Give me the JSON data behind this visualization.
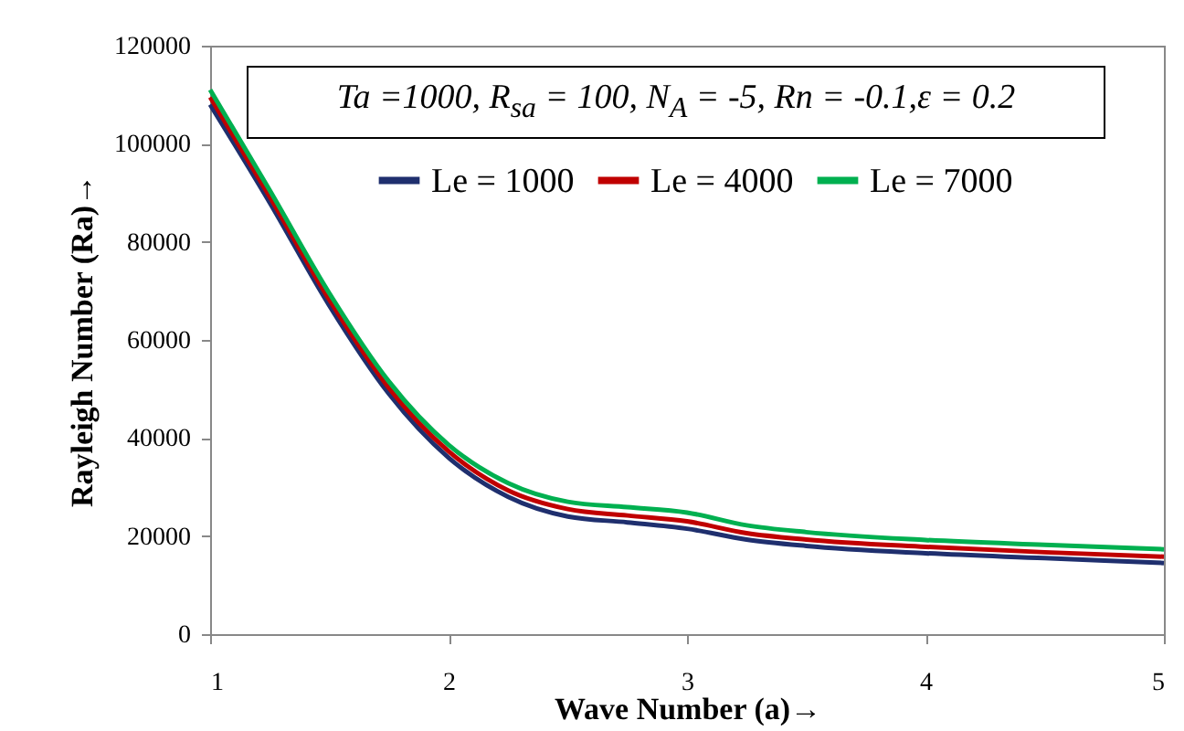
{
  "chart_data": {
    "type": "line",
    "xlabel": "Wave Number (a)→",
    "ylabel": "Rayleigh Number (Ra)→",
    "annotations": [
      "Ta =1000, R$_{sa}$ = 100, N$_{A}$ = -5, Rn = -0.1,ε = 0.2"
    ],
    "x": [
      1,
      1.25,
      1.5,
      1.75,
      2,
      2.25,
      2.5,
      2.75,
      3,
      3.25,
      3.5,
      4,
      4.5,
      5
    ],
    "series": [
      {
        "name": "Le = 1000",
        "color": "#1f2f6e",
        "values": [
          108000,
          88000,
          67000,
          49000,
          36000,
          28000,
          24000,
          22800,
          21500,
          19300,
          18000,
          16500,
          15500,
          14500
        ]
      },
      {
        "name": "Le = 4000",
        "color": "#c00000",
        "values": [
          109500,
          89200,
          68200,
          50200,
          37300,
          29300,
          25500,
          24200,
          23000,
          20600,
          19300,
          17800,
          16700,
          15800
        ]
      },
      {
        "name": "Le = 7000",
        "color": "#00b050",
        "values": [
          111000,
          90500,
          69500,
          51500,
          38600,
          30800,
          27000,
          25900,
          24800,
          22200,
          20800,
          19200,
          18200,
          17300
        ]
      }
    ],
    "xlim": [
      1,
      5
    ],
    "xticks": [
      1,
      2,
      3,
      4,
      5
    ],
    "ylim": [
      0,
      120000
    ],
    "yticks": [
      0,
      20000,
      40000,
      60000,
      80000,
      100000,
      120000
    ],
    "grid": false,
    "legend": "top right",
    "marker": "none",
    "line_style": "solid"
  }
}
